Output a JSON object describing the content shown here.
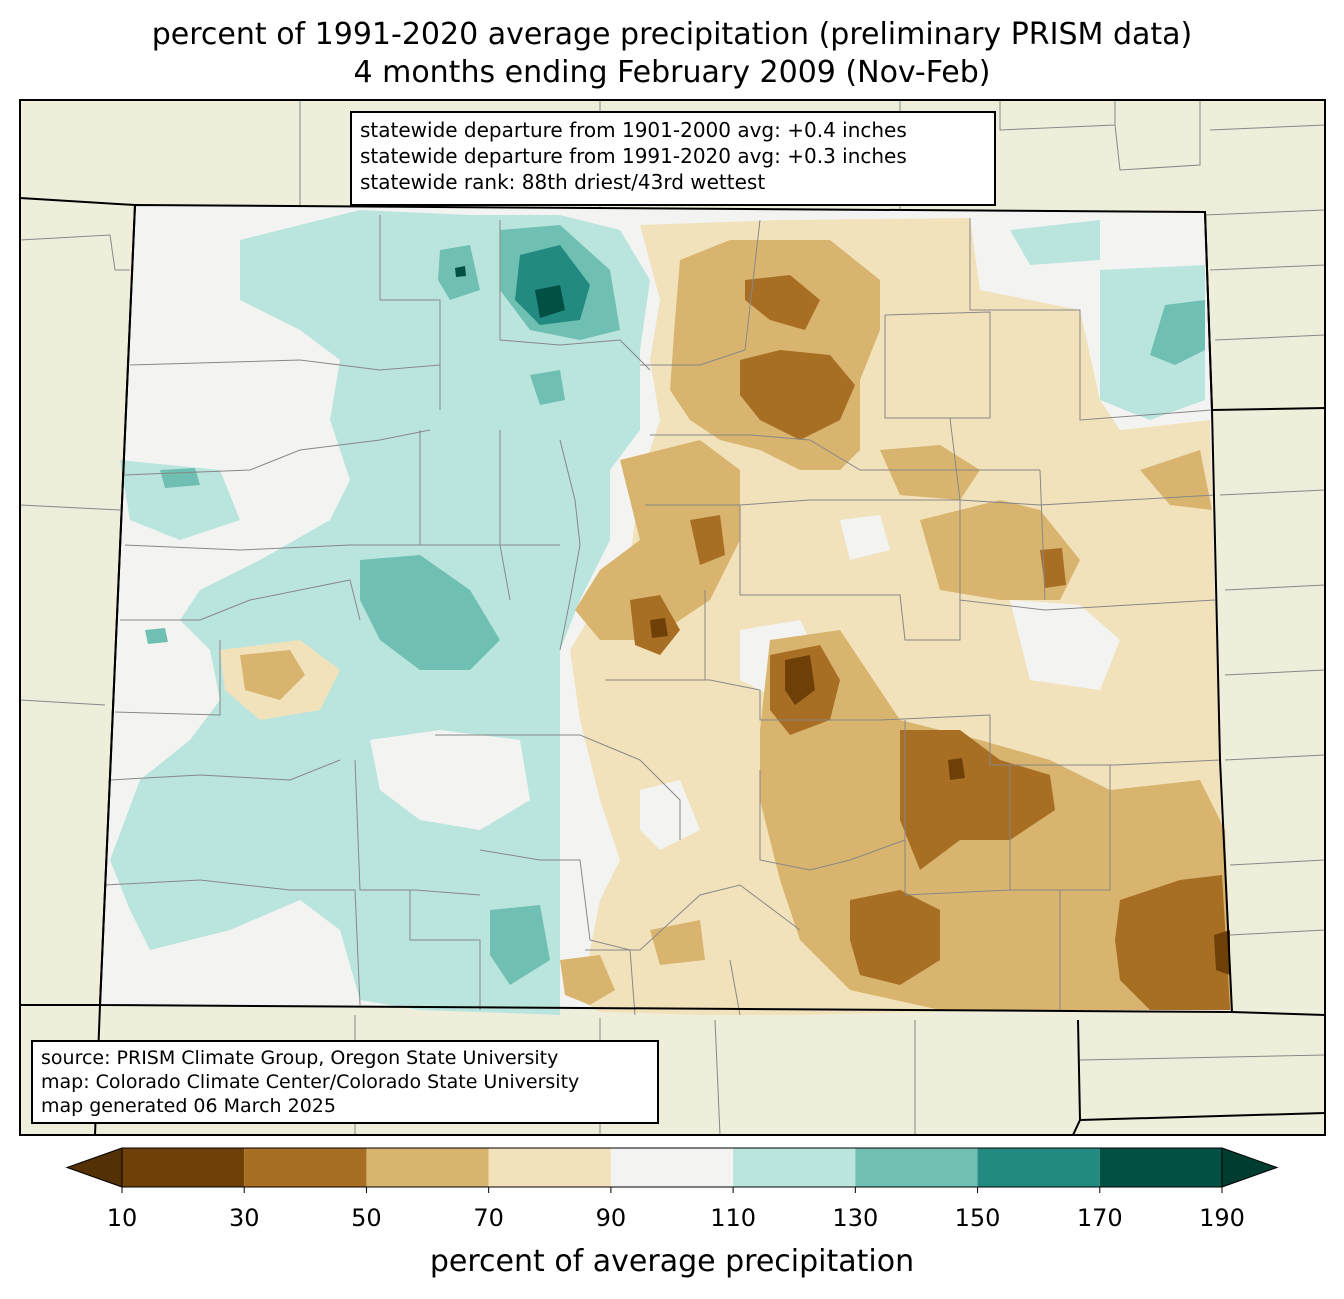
{
  "title": {
    "line1": "percent of 1991-2020 average precipitation (preliminary PRISM data)",
    "line2": "4 months ending February 2009 (Nov-Feb)"
  },
  "stats": {
    "line1": "statewide departure from 1901-2000 avg: +0.4 inches",
    "line2": "statewide departure from 1991-2020 avg: +0.3 inches",
    "line3": "statewide rank: 88th driest/43rd wettest"
  },
  "source": {
    "line1": "source: PRISM Climate Group, Oregon State University",
    "line2": "map: Colorado Climate Center/Colorado State University",
    "line3": "map generated 06 March 2025"
  },
  "colorbar": {
    "label": "percent of average precipitation",
    "ticks": [
      "10",
      "30",
      "50",
      "70",
      "90",
      "110",
      "130",
      "150",
      "170",
      "190"
    ],
    "colors": {
      "under": "#543005",
      "bins": [
        "#6e4008",
        "#a86e24",
        "#d8b46e",
        "#f2e2bc",
        "#f3f4f2",
        "#bae4de",
        "#6fbfb2",
        "#228a80",
        "#024f43"
      ],
      "over": "#003c30"
    }
  },
  "map_colors": {
    "background": "#efeedb",
    "state_fill": "#f3f4f2"
  }
}
